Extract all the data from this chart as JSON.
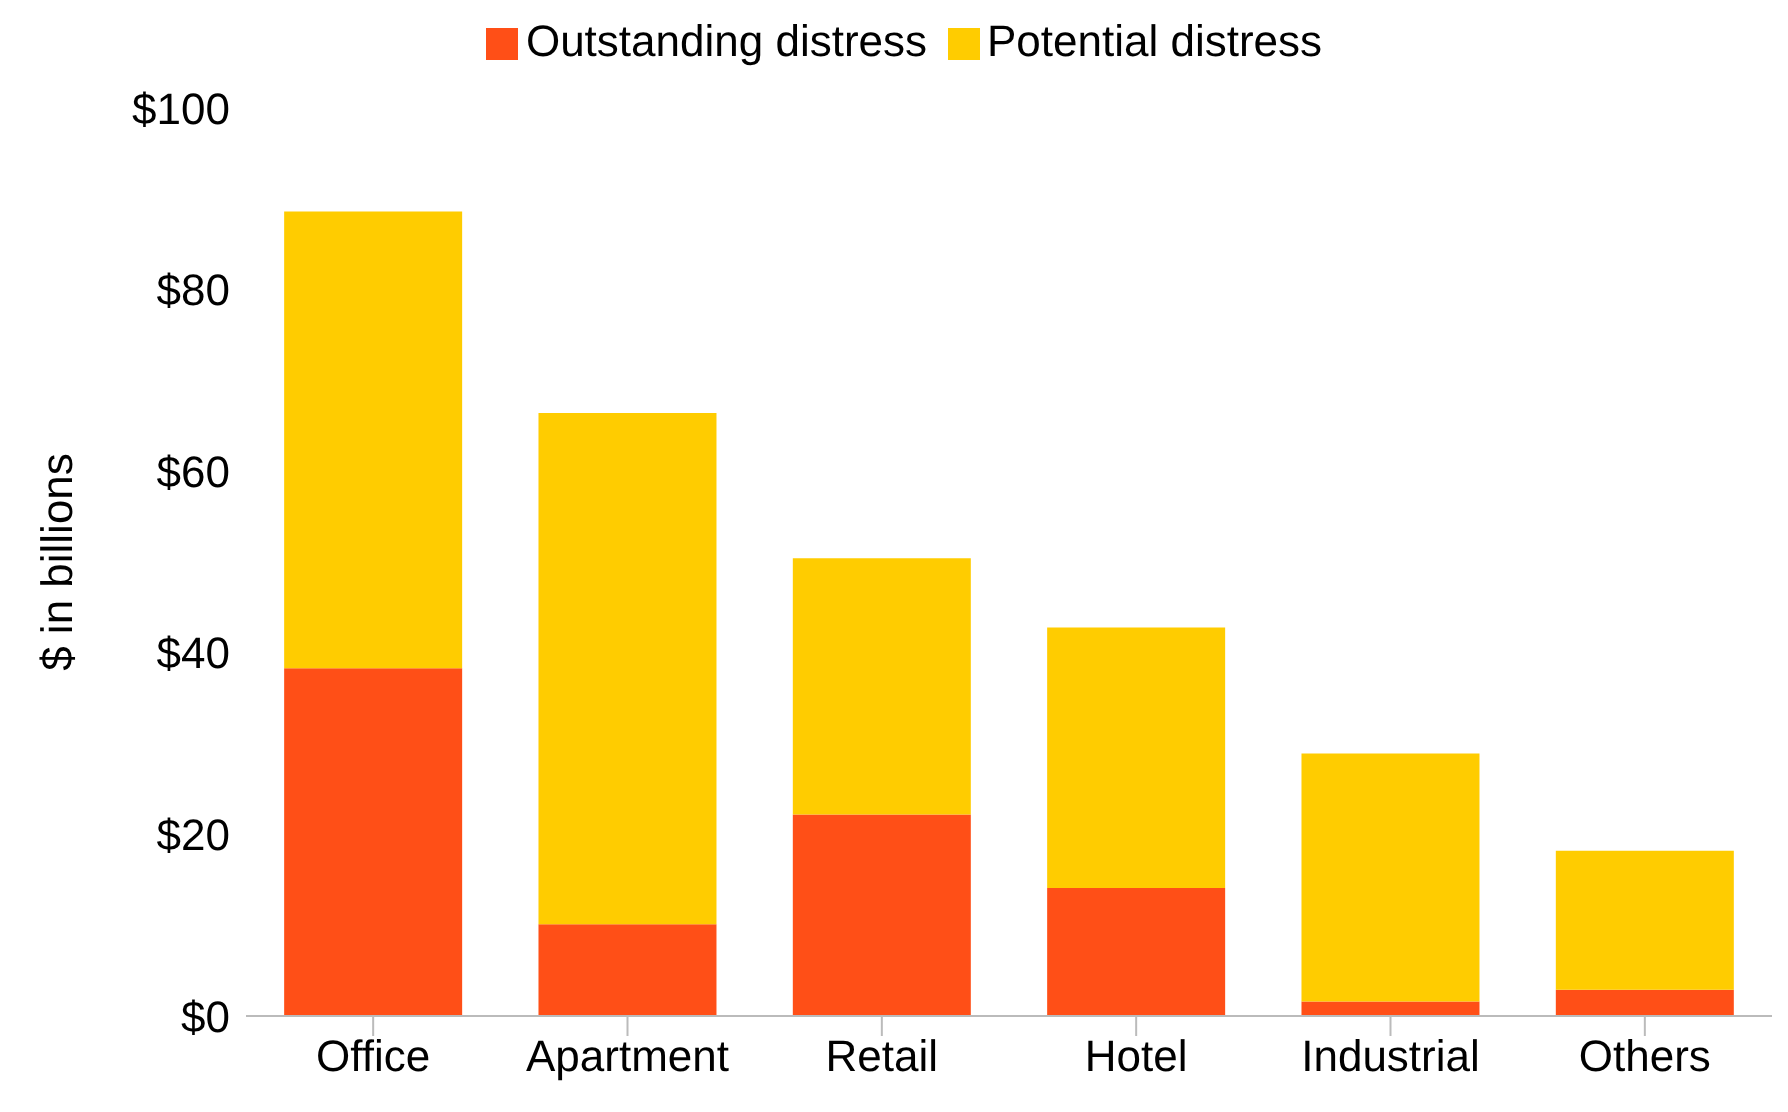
{
  "chart_data": {
    "type": "bar",
    "stacked": true,
    "ylabel": "$ in billions",
    "categories": [
      "Office",
      "Apartment",
      "Retail",
      "Hotel",
      "Industrial",
      "Others"
    ],
    "series": [
      {
        "name": "Outstanding distress",
        "color": "#ff4f17",
        "values": [
          38.3,
          10.1,
          22.2,
          14.1,
          1.6,
          2.9
        ]
      },
      {
        "name": "Potential distress",
        "color": "#ffcc00",
        "values": [
          50.3,
          56.3,
          28.2,
          28.7,
          27.3,
          15.3
        ]
      }
    ],
    "ylim": [
      0,
      100
    ],
    "yticks": [
      {
        "value": 0,
        "label": "$0"
      },
      {
        "value": 20,
        "label": "$20"
      },
      {
        "value": 40,
        "label": "$40"
      },
      {
        "value": 60,
        "label": "$60"
      },
      {
        "value": 80,
        "label": "$80"
      },
      {
        "value": 100,
        "label": "$100"
      }
    ],
    "grid": false,
    "legend": "top"
  }
}
